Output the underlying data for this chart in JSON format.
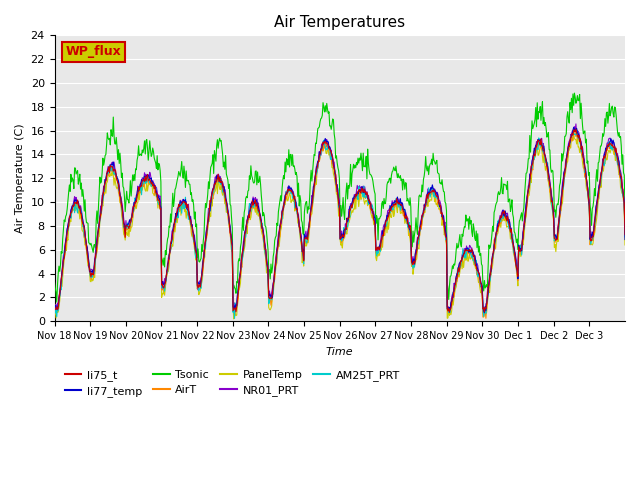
{
  "title": "Air Temperatures",
  "xlabel": "Time",
  "ylabel": "Air Temperature (C)",
  "ylim": [
    0,
    24
  ],
  "yticks": [
    0,
    2,
    4,
    6,
    8,
    10,
    12,
    14,
    16,
    18,
    20,
    22,
    24
  ],
  "background_color": "#e8e8e8",
  "series": [
    {
      "name": "li75_t",
      "color": "#cc0000"
    },
    {
      "name": "li77_temp",
      "color": "#0000cc"
    },
    {
      "name": "Tsonic",
      "color": "#00cc00"
    },
    {
      "name": "AirT",
      "color": "#ff8800"
    },
    {
      "name": "PanelTemp",
      "color": "#cccc00"
    },
    {
      "name": "NR01_PRT",
      "color": "#8800cc"
    },
    {
      "name": "AM25T_PRT",
      "color": "#00cccc"
    }
  ],
  "annotation_text": "WP_flux",
  "annotation_color": "#cc0000",
  "annotation_bg": "#cccc00",
  "annotation_border": "#cc0000",
  "tick_labels": [
    "Nov 18",
    "Nov 19",
    "Nov 20",
    "Nov 21",
    "Nov 22",
    "Nov 23",
    "Nov 24",
    "Nov 25",
    "Nov 26",
    "Nov 27",
    "Nov 28",
    "Nov 29",
    "Nov 30",
    "Dec 1",
    "Dec 2",
    "Dec 3"
  ]
}
